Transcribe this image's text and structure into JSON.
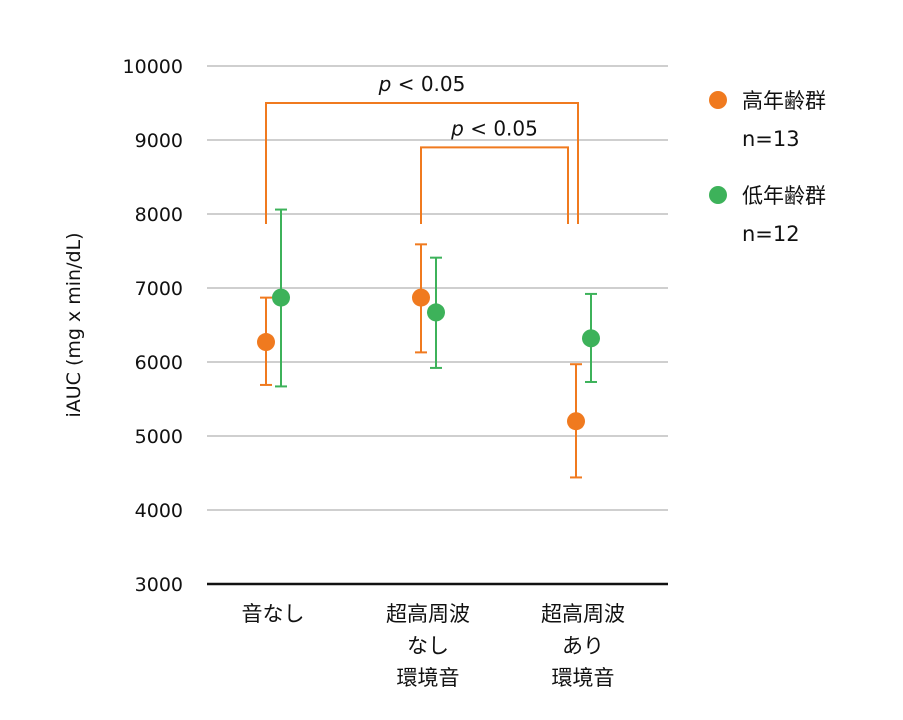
{
  "chart_data": {
    "type": "scatter",
    "ylabel": "iAUC (mg x min/dL)",
    "xlabel": "",
    "ylim": [
      3000,
      10000
    ],
    "yticks": [
      "10000",
      "9000",
      "8000",
      "7000",
      "6000",
      "5000",
      "4000",
      "3000"
    ],
    "grid": true,
    "legend_position": "right",
    "categories": [
      [
        "音なし"
      ],
      [
        "超高周波",
        "なし",
        "環境音"
      ],
      [
        "超高周波",
        "あり",
        "環境音"
      ]
    ],
    "series": [
      {
        "name": "高年齢群",
        "n_label": "n=13",
        "color": "#f07a1f",
        "values": [
          6270,
          6870,
          5200
        ],
        "error_low": [
          5690,
          6130,
          4440
        ],
        "error_high": [
          6870,
          7590,
          5970
        ]
      },
      {
        "name": "低年齢群",
        "n_label": "n=12",
        "color": "#3db25a",
        "values": [
          6870,
          6670,
          6320
        ],
        "error_low": [
          5670,
          5920,
          5730
        ],
        "error_high": [
          8060,
          7410,
          6920
        ]
      }
    ],
    "significance": [
      {
        "from_category": 0,
        "to_category": 2,
        "p_symbol": "p",
        "text": " < 0.05",
        "y": 9500
      },
      {
        "from_category": 1,
        "to_category": 2,
        "p_symbol": "p",
        "text": " < 0.05",
        "y": 8900
      }
    ]
  }
}
